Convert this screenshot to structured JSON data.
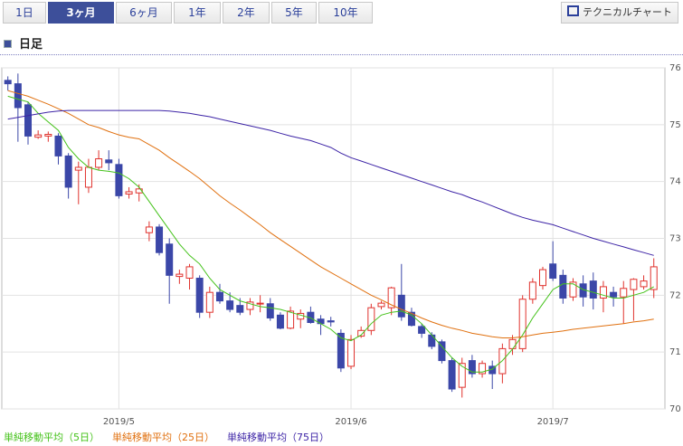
{
  "ui": {
    "tabs": [
      "1日",
      "3ヶ月",
      "6ヶ月",
      "1年",
      "2年",
      "5年",
      "10年"
    ],
    "selected_tab": 1,
    "button": "テクニカルチャート",
    "section_title": "日足"
  },
  "chart_data": {
    "type": "candlestick",
    "open": [
      75.78,
      75.72,
      75.35,
      74.78,
      74.8,
      74.8,
      74.45,
      74.2,
      73.9,
      74.25,
      74.38,
      74.3,
      73.78,
      73.8,
      73.1,
      73.2,
      72.9,
      72.33,
      72.3,
      72.3,
      71.7,
      72.05,
      71.9,
      71.82,
      71.75,
      71.85,
      71.85,
      71.65,
      71.42,
      71.58,
      71.7,
      71.58,
      71.55,
      71.33,
      70.75,
      71.28,
      71.38,
      71.8,
      71.78,
      72.0,
      71.7,
      71.45,
      71.3,
      71.18,
      70.85,
      70.38,
      70.85,
      70.62,
      70.75,
      70.62,
      71.06,
      71.06,
      71.93,
      72.17,
      72.55,
      72.35,
      71.97,
      72.2,
      72.25,
      71.95,
      72.05,
      71.97,
      72.1,
      72.15,
      72.1
    ],
    "high": [
      75.85,
      75.9,
      75.4,
      74.9,
      74.88,
      74.85,
      74.5,
      74.35,
      74.4,
      74.55,
      74.55,
      74.4,
      73.9,
      73.95,
      73.3,
      73.25,
      73.0,
      72.45,
      72.55,
      72.35,
      72.15,
      72.2,
      72.05,
      71.95,
      71.95,
      72.0,
      71.95,
      71.7,
      71.8,
      71.75,
      71.8,
      71.65,
      71.62,
      71.4,
      71.3,
      71.45,
      71.85,
      71.9,
      72.15,
      72.55,
      71.78,
      71.5,
      71.35,
      71.22,
      70.9,
      70.9,
      70.95,
      70.85,
      70.85,
      71.15,
      71.3,
      72.0,
      72.3,
      72.5,
      72.95,
      72.45,
      72.3,
      72.35,
      72.4,
      72.25,
      72.15,
      72.25,
      72.3,
      72.35,
      72.65
    ],
    "low": [
      75.6,
      74.7,
      74.65,
      74.75,
      74.7,
      74.3,
      73.7,
      73.6,
      73.8,
      74.2,
      74.2,
      73.7,
      73.7,
      73.65,
      72.95,
      72.7,
      71.85,
      72.2,
      72.1,
      71.6,
      71.6,
      71.85,
      71.7,
      71.65,
      71.65,
      71.7,
      71.55,
      71.4,
      71.4,
      71.42,
      71.5,
      71.3,
      71.45,
      70.65,
      70.7,
      71.25,
      71.3,
      71.75,
      71.65,
      71.55,
      71.45,
      71.25,
      71.05,
      70.8,
      70.3,
      70.2,
      70.55,
      70.55,
      70.35,
      70.45,
      70.95,
      71.0,
      71.85,
      72.1,
      72.25,
      71.85,
      71.9,
      71.8,
      71.75,
      71.7,
      71.8,
      71.5,
      71.55,
      72.1,
      71.95
    ],
    "close": [
      75.72,
      75.3,
      74.8,
      74.82,
      74.83,
      74.45,
      73.9,
      74.25,
      74.25,
      74.4,
      74.33,
      73.75,
      73.82,
      73.87,
      73.2,
      72.75,
      72.35,
      72.37,
      72.5,
      71.7,
      72.05,
      71.9,
      71.75,
      71.7,
      71.88,
      71.86,
      71.6,
      71.42,
      71.72,
      71.68,
      71.52,
      71.5,
      71.53,
      70.72,
      71.22,
      71.38,
      71.78,
      71.86,
      72.13,
      71.62,
      71.47,
      71.33,
      71.1,
      70.85,
      70.35,
      70.8,
      70.62,
      70.8,
      70.62,
      71.06,
      71.22,
      71.93,
      72.23,
      72.45,
      72.3,
      71.95,
      72.23,
      71.97,
      71.95,
      72.15,
      71.97,
      72.12,
      72.28,
      72.25,
      72.5
    ],
    "up_color": "#e0322d",
    "down_color": "#3b47a8",
    "series": [
      {
        "name": "単純移動平均（5日）",
        "color": "#44c21a",
        "values": [
          75.5,
          75.45,
          75.4,
          75.2,
          75.05,
          74.9,
          74.6,
          74.4,
          74.25,
          74.2,
          74.18,
          74.15,
          74.05,
          73.9,
          73.65,
          73.4,
          73.15,
          72.9,
          72.7,
          72.55,
          72.3,
          72.1,
          72.0,
          71.9,
          71.85,
          71.8,
          71.78,
          71.75,
          71.7,
          71.65,
          71.6,
          71.5,
          71.4,
          71.25,
          71.2,
          71.3,
          71.5,
          71.65,
          71.7,
          71.72,
          71.65,
          71.5,
          71.3,
          71.1,
          70.9,
          70.75,
          70.65,
          70.65,
          70.7,
          70.85,
          71.05,
          71.3,
          71.6,
          71.85,
          72.1,
          72.2,
          72.2,
          72.1,
          72.05,
          72.0,
          71.95,
          71.95,
          72.0,
          72.05,
          72.15
        ]
      },
      {
        "name": "単純移動平均（25日）",
        "color": "#e0700f",
        "values": [
          75.6,
          75.55,
          75.5,
          75.43,
          75.36,
          75.28,
          75.2,
          75.1,
          75.0,
          74.95,
          74.88,
          74.82,
          74.78,
          74.75,
          74.65,
          74.55,
          74.42,
          74.3,
          74.18,
          74.05,
          73.9,
          73.75,
          73.62,
          73.5,
          73.37,
          73.24,
          73.1,
          72.98,
          72.86,
          72.74,
          72.62,
          72.5,
          72.4,
          72.3,
          72.2,
          72.1,
          72.0,
          71.92,
          71.83,
          71.75,
          71.68,
          71.6,
          71.53,
          71.47,
          71.42,
          71.38,
          71.33,
          71.3,
          71.27,
          71.25,
          71.25,
          71.27,
          71.3,
          71.33,
          71.35,
          71.37,
          71.4,
          71.42,
          71.44,
          71.46,
          71.48,
          71.5,
          71.53,
          71.55,
          71.58
        ]
      },
      {
        "name": "単純移動平均（75日）",
        "color": "#3d24a6",
        "values": [
          75.1,
          75.13,
          75.16,
          75.19,
          75.22,
          75.24,
          75.25,
          75.25,
          75.25,
          75.25,
          75.25,
          75.25,
          75.25,
          75.25,
          75.25,
          75.25,
          75.24,
          75.22,
          75.2,
          75.17,
          75.14,
          75.1,
          75.06,
          75.02,
          74.98,
          74.94,
          74.9,
          74.85,
          74.8,
          74.76,
          74.72,
          74.66,
          74.6,
          74.5,
          74.42,
          74.36,
          74.3,
          74.24,
          74.18,
          74.12,
          74.06,
          74.0,
          73.94,
          73.88,
          73.82,
          73.77,
          73.7,
          73.64,
          73.57,
          73.5,
          73.43,
          73.37,
          73.32,
          73.28,
          73.24,
          73.18,
          73.12,
          73.06,
          73.0,
          72.95,
          72.9,
          72.85,
          72.8,
          72.75,
          72.7
        ]
      }
    ],
    "xlim": [
      -0.6,
      65.1
    ],
    "xticks": [
      {
        "value": 11,
        "label": "2019/5"
      },
      {
        "value": 34,
        "label": "2019/6"
      },
      {
        "value": 54,
        "label": "2019/7"
      }
    ],
    "ylim": [
      70,
      76
    ],
    "yticks": [
      70,
      71,
      72,
      73,
      74,
      75,
      76
    ],
    "grid": true
  }
}
